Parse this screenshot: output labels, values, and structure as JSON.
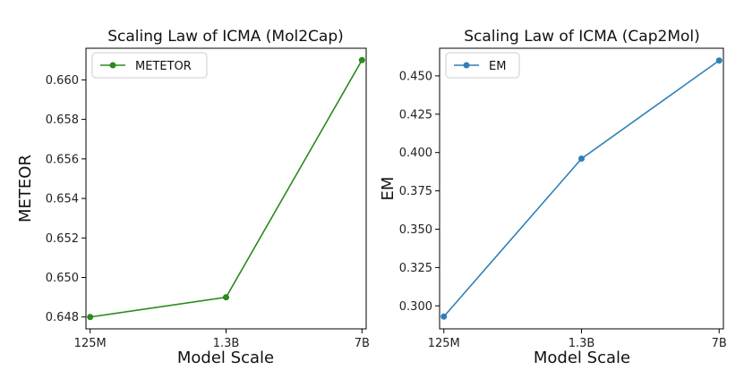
{
  "chart_data": [
    {
      "type": "line",
      "title": "Scaling Law of ICMA (Mol2Cap)",
      "xlabel": "Model Scale",
      "ylabel": "METEOR",
      "categories": [
        "125M",
        "1.3B",
        "7B"
      ],
      "series": [
        {
          "name": "METETOR",
          "values": [
            0.648,
            0.649,
            0.661
          ]
        }
      ],
      "color": "#2a8a1c",
      "ylim": [
        0.6474,
        0.6616
      ],
      "yticks": [
        0.648,
        0.65,
        0.652,
        0.654,
        0.656,
        0.658,
        0.66
      ],
      "ytick_labels": [
        "0.648",
        "0.650",
        "0.652",
        "0.654",
        "0.656",
        "0.658",
        "0.660"
      ],
      "legend": "top-left",
      "grid": false
    },
    {
      "type": "line",
      "title": "Scaling Law of ICMA (Cap2Mol)",
      "xlabel": "Model Scale",
      "ylabel": "EM",
      "categories": [
        "125M",
        "1.3B",
        "7B"
      ],
      "series": [
        {
          "name": "EM",
          "values": [
            0.293,
            0.396,
            0.46
          ]
        }
      ],
      "color": "#2f7fb8",
      "ylim": [
        0.285,
        0.468
      ],
      "yticks": [
        0.3,
        0.325,
        0.35,
        0.375,
        0.4,
        0.425,
        0.45
      ],
      "ytick_labels": [
        "0.300",
        "0.325",
        "0.350",
        "0.375",
        "0.400",
        "0.425",
        "0.450"
      ],
      "legend": "top-left",
      "grid": false
    }
  ]
}
